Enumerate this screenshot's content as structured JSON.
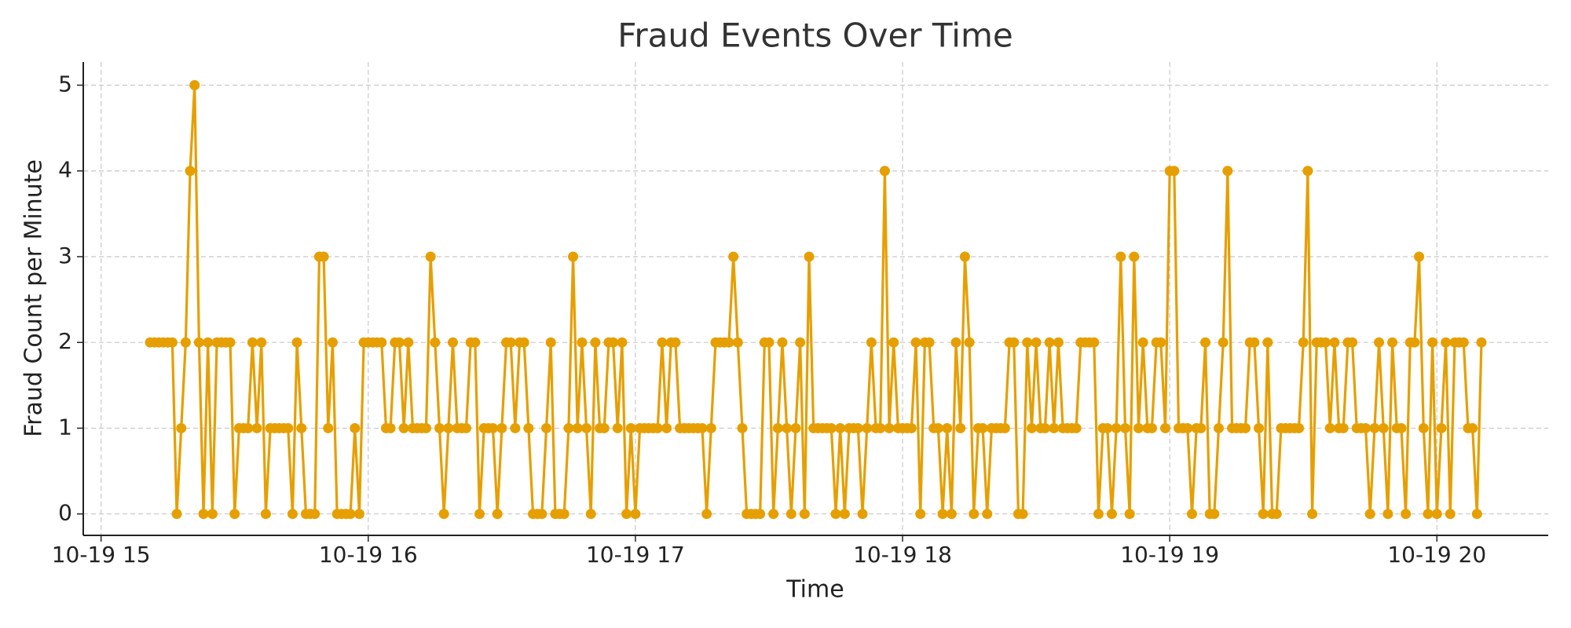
{
  "chart_data": {
    "type": "line",
    "title": "Fraud Events Over Time",
    "x_label": "Time",
    "y_label": "Fraud Count per Minute",
    "color": "#e69f00",
    "grid": true,
    "xlim": [
      896,
      1225
    ],
    "ylim": [
      -0.25,
      5.27
    ],
    "xticks": [
      {
        "value": 900,
        "label": "10-19 15"
      },
      {
        "value": 960,
        "label": "10-19 16"
      },
      {
        "value": 1020,
        "label": "10-19 17"
      },
      {
        "value": 1080,
        "label": "10-19 18"
      },
      {
        "value": 1140,
        "label": "10-19 19"
      },
      {
        "value": 1200,
        "label": "10-19 20"
      }
    ],
    "yticks": [
      0,
      1,
      2,
      3,
      4,
      5
    ],
    "x": [
      911,
      912,
      913,
      914,
      915,
      916,
      917,
      918,
      919,
      920,
      921,
      922,
      923,
      924,
      925,
      926,
      927,
      928,
      929,
      930,
      931,
      932,
      933,
      934,
      935,
      936,
      937,
      938,
      939,
      940,
      941,
      942,
      943,
      944,
      945,
      946,
      947,
      948,
      949,
      950,
      951,
      952,
      953,
      954,
      955,
      956,
      957,
      958,
      959,
      960,
      961,
      962,
      963,
      964,
      965,
      966,
      967,
      968,
      969,
      970,
      971,
      972,
      973,
      974,
      975,
      976,
      977,
      978,
      979,
      980,
      981,
      982,
      983,
      984,
      985,
      986,
      987,
      988,
      989,
      990,
      991,
      992,
      993,
      994,
      995,
      996,
      997,
      998,
      999,
      1000,
      1001,
      1002,
      1003,
      1004,
      1005,
      1006,
      1007,
      1008,
      1009,
      1010,
      1011,
      1012,
      1013,
      1014,
      1015,
      1016,
      1017,
      1018,
      1019,
      1020,
      1021,
      1022,
      1023,
      1024,
      1025,
      1026,
      1027,
      1028,
      1029,
      1030,
      1031,
      1032,
      1033,
      1034,
      1035,
      1036,
      1037,
      1038,
      1039,
      1040,
      1041,
      1042,
      1043,
      1044,
      1045,
      1046,
      1047,
      1048,
      1049,
      1050,
      1051,
      1052,
      1053,
      1054,
      1055,
      1056,
      1057,
      1058,
      1059,
      1060,
      1061,
      1062,
      1063,
      1064,
      1065,
      1066,
      1067,
      1068,
      1069,
      1070,
      1071,
      1072,
      1073,
      1074,
      1075,
      1076,
      1077,
      1078,
      1079,
      1080,
      1081,
      1082,
      1083,
      1084,
      1085,
      1086,
      1087,
      1088,
      1089,
      1090,
      1091,
      1092,
      1093,
      1094,
      1095,
      1096,
      1097,
      1098,
      1099,
      1100,
      1101,
      1102,
      1103,
      1104,
      1105,
      1106,
      1107,
      1108,
      1109,
      1110,
      1111,
      1112,
      1113,
      1114,
      1115,
      1116,
      1117,
      1118,
      1119,
      1120,
      1121,
      1122,
      1123,
      1124,
      1125,
      1126,
      1127,
      1128,
      1129,
      1130,
      1131,
      1132,
      1133,
      1134,
      1135,
      1136,
      1137,
      1138,
      1139,
      1140,
      1141,
      1142,
      1143,
      1144,
      1145,
      1146,
      1147,
      1148,
      1149,
      1150,
      1151,
      1152,
      1153,
      1154,
      1155,
      1156,
      1157,
      1158,
      1159,
      1160,
      1161,
      1162,
      1163,
      1164,
      1165,
      1166,
      1167,
      1168,
      1169,
      1170,
      1171,
      1172,
      1173,
      1174,
      1175,
      1176,
      1177,
      1178,
      1179,
      1180,
      1181,
      1182,
      1183,
      1184,
      1185,
      1186,
      1187,
      1188,
      1189,
      1190,
      1191,
      1192,
      1193,
      1194,
      1195,
      1196,
      1197,
      1198,
      1199,
      1200,
      1201,
      1202,
      1203,
      1204,
      1205,
      1206,
      1207,
      1208,
      1209,
      1210
    ],
    "values": [
      2,
      2,
      2,
      2,
      2,
      2,
      0,
      1,
      2,
      4,
      5,
      2,
      0,
      2,
      0,
      2,
      2,
      2,
      2,
      0,
      1,
      1,
      1,
      2,
      1,
      2,
      0,
      1,
      1,
      1,
      1,
      1,
      0,
      2,
      1,
      0,
      0,
      0,
      3,
      3,
      1,
      2,
      0,
      0,
      0,
      0,
      1,
      0,
      2,
      2,
      2,
      2,
      2,
      1,
      1,
      2,
      2,
      1,
      2,
      1,
      1,
      1,
      1,
      3,
      2,
      1,
      0,
      1,
      2,
      1,
      1,
      1,
      2,
      2,
      0,
      1,
      1,
      1,
      0,
      1,
      2,
      2,
      1,
      2,
      2,
      1,
      0,
      0,
      0,
      1,
      2,
      0,
      0,
      0,
      1,
      3,
      1,
      2,
      1,
      0,
      2,
      1,
      1,
      2,
      2,
      1,
      2,
      0,
      1,
      0,
      1,
      1,
      1,
      1,
      1,
      2,
      1,
      2,
      2,
      1,
      1,
      1,
      1,
      1,
      1,
      0,
      1,
      2,
      2,
      2,
      2,
      3,
      2,
      1,
      0,
      0,
      0,
      0,
      2,
      2,
      0,
      1,
      2,
      1,
      0,
      1,
      2,
      0,
      3,
      1,
      1,
      1,
      1,
      1,
      0,
      1,
      0,
      1,
      1,
      1,
      0,
      1,
      2,
      1,
      1,
      4,
      1,
      2,
      1,
      1,
      1,
      1,
      2,
      0,
      2,
      2,
      1,
      1,
      0,
      1,
      0,
      2,
      1,
      3,
      2,
      0,
      1,
      1,
      0,
      1,
      1,
      1,
      1,
      2,
      2,
      0,
      0,
      2,
      1,
      2,
      1,
      1,
      2,
      1,
      2,
      1,
      1,
      1,
      1,
      2,
      2,
      2,
      2,
      0,
      1,
      1,
      0,
      1,
      3,
      1,
      0,
      3,
      1,
      2,
      1,
      1,
      2,
      2,
      1,
      4,
      4,
      1,
      1,
      1,
      0,
      1,
      1,
      2,
      0,
      0,
      1,
      2,
      4,
      1,
      1,
      1,
      1,
      2,
      2,
      1,
      0,
      2,
      0,
      0,
      1,
      1,
      1,
      1,
      1,
      2,
      4,
      0,
      2,
      2,
      2,
      1,
      2,
      1,
      1,
      2,
      2,
      1,
      1,
      1,
      0,
      1,
      2,
      1,
      0,
      2,
      1,
      1,
      0,
      2,
      2,
      3,
      1,
      0,
      2,
      0,
      1,
      2,
      0,
      2,
      2,
      2,
      1,
      1,
      0,
      2
    ]
  }
}
